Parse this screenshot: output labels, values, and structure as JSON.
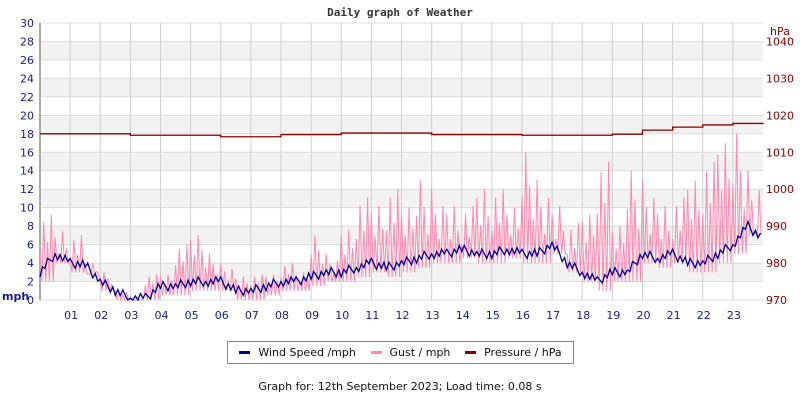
{
  "chart_data": {
    "type": "line",
    "title": "Daily graph of Weather",
    "x_ticks": [
      "01",
      "02",
      "03",
      "04",
      "05",
      "06",
      "07",
      "08",
      "09",
      "10",
      "11",
      "12",
      "13",
      "14",
      "15",
      "16",
      "17",
      "18",
      "19",
      "20",
      "21",
      "22",
      "23"
    ],
    "xlim": [
      0,
      24
    ],
    "left_axis": {
      "label": "mph",
      "ylim": [
        0,
        30
      ],
      "ticks": [
        0,
        2,
        4,
        6,
        8,
        10,
        12,
        14,
        16,
        18,
        20,
        22,
        24,
        26,
        28,
        30
      ],
      "color": "#1a1a8c"
    },
    "right_axis": {
      "label": "hPa",
      "ylim": [
        970,
        1045
      ],
      "ticks": [
        970,
        980,
        990,
        1000,
        1010,
        1020,
        1030,
        1040
      ],
      "color": "#8b0000"
    },
    "grid": true,
    "series": [
      {
        "name": "Wind Speed /mph",
        "color": "#000099",
        "axis": "left",
        "x": [
          0,
          0.5,
          1,
          1.5,
          2,
          2.5,
          3,
          3.5,
          4,
          4.5,
          5,
          5.5,
          6,
          6.5,
          7,
          7.5,
          8,
          8.5,
          9,
          9.5,
          10,
          10.5,
          11,
          11.5,
          12,
          12.5,
          13,
          13.5,
          14,
          14.5,
          15,
          15.5,
          16,
          16.5,
          17,
          17.5,
          18,
          18.5,
          19,
          19.5,
          20,
          20.5,
          21,
          21.5,
          22,
          22.5,
          23,
          23.5,
          24
        ],
        "values": [
          3,
          5,
          4,
          3.8,
          2,
          1,
          0.2,
          0.2,
          1.5,
          1.5,
          2,
          2,
          2,
          1,
          1,
          1.5,
          2,
          2,
          2.5,
          3,
          3,
          3.5,
          4,
          3.5,
          4,
          4.5,
          5,
          5,
          5.5,
          5,
          5,
          5.5,
          5,
          5,
          6,
          4,
          3,
          2,
          3,
          3,
          5,
          4.5,
          5,
          4,
          4,
          5,
          6,
          8,
          6.5
        ]
      },
      {
        "name": "Gust / mph",
        "color": "#ff88b0",
        "axis": "left",
        "x": [
          0,
          0.5,
          1,
          1.5,
          2,
          2.5,
          3,
          3.5,
          4,
          4.5,
          5,
          5.5,
          6,
          6.5,
          7,
          7.5,
          8,
          8.5,
          9,
          9.5,
          10,
          10.5,
          11,
          11.5,
          12,
          12.5,
          13,
          13.5,
          14,
          14.5,
          15,
          15.5,
          16,
          16.5,
          17,
          17.5,
          18,
          18.5,
          19,
          19.5,
          20,
          20.5,
          21,
          21.5,
          22,
          22.5,
          23,
          23.5
        ],
        "values": [
          10,
          8,
          7,
          4,
          3,
          1,
          0,
          3,
          3,
          6,
          7,
          5,
          4,
          3,
          3,
          3,
          4,
          3,
          7,
          5,
          9,
          12,
          11,
          12,
          10,
          13,
          12,
          12,
          11,
          13,
          12,
          10,
          16,
          13,
          12,
          9,
          10,
          15,
          8,
          14,
          13,
          12,
          12,
          14,
          15,
          17,
          18,
          14
        ]
      },
      {
        "name": "Pressure / hPa",
        "color": "#8b0000",
        "axis": "right",
        "x": [
          0,
          3,
          6,
          8,
          10,
          13,
          16,
          19,
          20,
          21,
          22,
          23,
          24
        ],
        "values": [
          1015,
          1014.6,
          1014.2,
          1014.8,
          1015.2,
          1014.8,
          1014.6,
          1014.9,
          1016,
          1016.8,
          1017.4,
          1017.8,
          1018
        ]
      }
    ]
  },
  "footer": "Graph for: 12th September 2023; Load time: 0.08 s"
}
